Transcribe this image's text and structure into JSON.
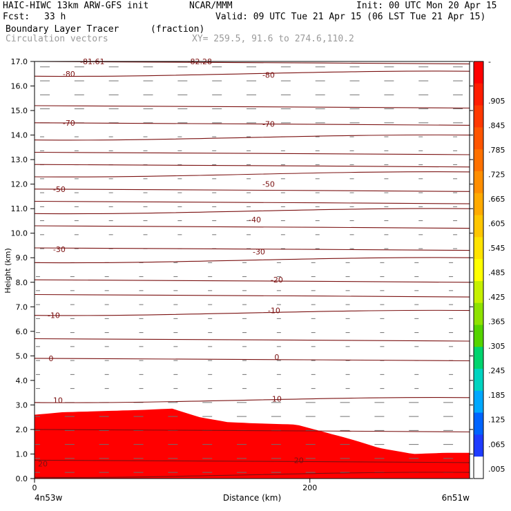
{
  "header": {
    "model": "HAIC-HIWC 13km ARW-GFS init",
    "org": "NCAR/MMM",
    "init": "Init: 00 UTC Mon 20 Apr 15",
    "fcst_label": "Fcst:",
    "fcst_value": "33 h",
    "valid": "Valid: 09 UTC Tue 21 Apr 15 (06 LST Tue 21 Apr 15)",
    "field1": "Boundary Layer Tracer",
    "field1_units": "(fraction)",
    "field2": "Circulation vectors",
    "xy": "XY= 259.5, 91.6 to 274.6,110.2"
  },
  "chart_data": {
    "type": "heatmap",
    "ylabel": "Height (km)",
    "xlabel": "Distance (km)",
    "ylim": [
      0,
      17
    ],
    "xlim": [
      0,
      316
    ],
    "y_ticks": [
      "0.0",
      "1.0",
      "2.0",
      "3.0",
      "4.0",
      "5.0",
      "6.0",
      "7.0",
      "8.0",
      "9.0",
      "10.0",
      "11.0",
      "12.0",
      "13.0",
      "14.0",
      "15.0",
      "16.0",
      "17.0"
    ],
    "x_ticks": [
      {
        "value": 0,
        "label": "0"
      },
      {
        "value": 200,
        "label": "200"
      }
    ],
    "x_end_labels": {
      "left": "4n53w",
      "right": "6n51w"
    },
    "colorbar_labels": [
      "-",
      ".905",
      ".845",
      ".785",
      ".725",
      ".665",
      ".605",
      ".545",
      ".485",
      ".425",
      ".365",
      ".305",
      ".245",
      ".185",
      ".125",
      ".065",
      ".005"
    ],
    "colorbar_colors": [
      "#ff0000",
      "#ff1c00",
      "#ff3800",
      "#ff5500",
      "#ff7100",
      "#ff8e00",
      "#ffaa00",
      "#ffc600",
      "#ffe300",
      "#ffff00",
      "#c6f000",
      "#8ee200",
      "#55d400",
      "#00d46e",
      "#00d4c0",
      "#00a8ff",
      "#0064ff",
      "#1e3cff",
      "#ffffff"
    ],
    "contour_labels": [
      {
        "x": 25,
        "y": 16.5,
        "text": "-80"
      },
      {
        "x": 170,
        "y": 16.45,
        "text": "-80"
      },
      {
        "x": 25,
        "y": 14.5,
        "text": "-70"
      },
      {
        "x": 170,
        "y": 14.45,
        "text": "-70"
      },
      {
        "x": 18,
        "y": 11.8,
        "text": "-50"
      },
      {
        "x": 170,
        "y": 12.0,
        "text": "-50"
      },
      {
        "x": 160,
        "y": 10.55,
        "text": "-40"
      },
      {
        "x": 18,
        "y": 9.35,
        "text": "-30"
      },
      {
        "x": 163,
        "y": 9.25,
        "text": "-30"
      },
      {
        "x": 176,
        "y": 8.1,
        "text": "-20"
      },
      {
        "x": 14,
        "y": 6.65,
        "text": "-10"
      },
      {
        "x": 174,
        "y": 6.85,
        "text": "-10"
      },
      {
        "x": 12,
        "y": 4.9,
        "text": "0"
      },
      {
        "x": 176,
        "y": 4.95,
        "text": "0"
      },
      {
        "x": 17,
        "y": 3.2,
        "text": "10"
      },
      {
        "x": 176,
        "y": 3.25,
        "text": "10"
      },
      {
        "x": 6,
        "y": 0.6,
        "text": "20"
      },
      {
        "x": 192,
        "y": 0.75,
        "text": "20"
      },
      {
        "x": 120,
        "y": 17.0,
        "text": "-82.28"
      },
      {
        "x": 42,
        "y": 17.0,
        "text": "-81.61"
      }
    ]
  }
}
